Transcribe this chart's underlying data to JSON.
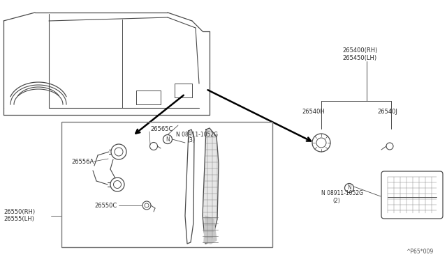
{
  "bg_color": "#ffffff",
  "line_color": "#4a4a4a",
  "text_color": "#2a2a2a",
  "title_bottom": "^P65*009",
  "labels": {
    "part_top_rh": "265400(RH)",
    "part_top_lh": "265450(LH)",
    "part_h": "26540H",
    "part_j": "26540J",
    "part_bolt2_line1": "N 08911-1052G",
    "part_bolt2_line2": "(2)",
    "part_left_rh": "26550(RH)",
    "part_left_lh": "26555(LH)",
    "part_565c": "26565C",
    "part_bolt3_line1": "N 08911-1052G",
    "part_bolt3_line2": "(3)",
    "part_556a": "26556A",
    "part_550c": "26550C"
  }
}
